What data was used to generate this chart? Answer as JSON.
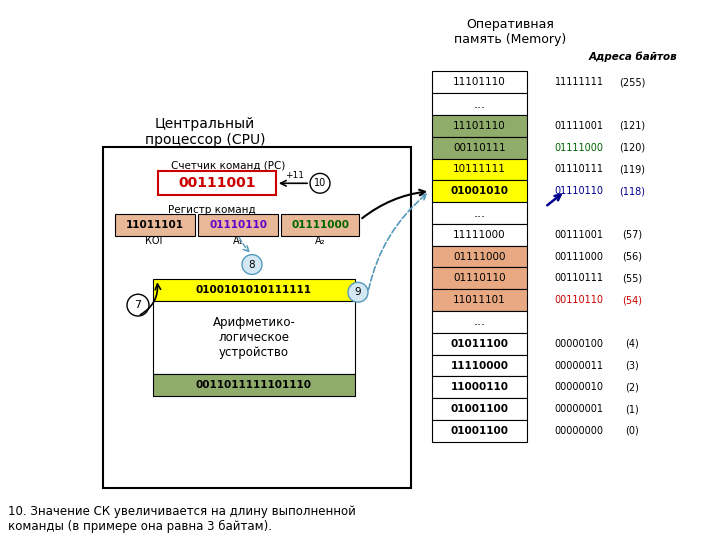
{
  "title_memory": "Оперативная\nпамять (Memory)",
  "title_cpu": "Центральный\nпроцессор (CPU)",
  "addr_label": "Адреса байтов",
  "caption": "10. Значение СК увеличивается на длину выполненной\nкоманды (в примере она равна 3 байтам).",
  "memory_rows": [
    {
      "data": "11101110",
      "addr": "11111111",
      "num": "(255)",
      "bg": "#ffffff",
      "addr_color": "#000000",
      "num_color": "#000000",
      "data_bold": false
    },
    {
      "data": "...",
      "addr": "",
      "num": "",
      "bg": "#ffffff",
      "addr_color": "#000000",
      "num_color": "#000000",
      "data_bold": false
    },
    {
      "data": "11101110",
      "addr": "01111001",
      "num": "(121)",
      "bg": "#8fac6a",
      "addr_color": "#000000",
      "num_color": "#000000",
      "data_bold": false
    },
    {
      "data": "00110111",
      "addr": "01111000",
      "num": "(120)",
      "bg": "#8fac6a",
      "addr_color": "#006600",
      "num_color": "#000000",
      "data_bold": false
    },
    {
      "data": "10111111",
      "addr": "01110111",
      "num": "(119)",
      "bg": "#ffff00",
      "addr_color": "#000000",
      "num_color": "#000000",
      "data_bold": false
    },
    {
      "data": "01001010",
      "addr": "01110110",
      "num": "(118)",
      "bg": "#ffff00",
      "addr_color": "#00008b",
      "num_color": "#00008b",
      "data_bold": true
    },
    {
      "data": "...",
      "addr": "",
      "num": "",
      "bg": "#ffffff",
      "addr_color": "#000000",
      "num_color": "#000000",
      "data_bold": false
    },
    {
      "data": "11111000",
      "addr": "00111001",
      "num": "(57)",
      "bg": "#ffffff",
      "addr_color": "#000000",
      "num_color": "#000000",
      "data_bold": false
    },
    {
      "data": "01111000",
      "addr": "00111000",
      "num": "(56)",
      "bg": "#e8a882",
      "addr_color": "#000000",
      "num_color": "#000000",
      "data_bold": false
    },
    {
      "data": "01110110",
      "addr": "00110111",
      "num": "(55)",
      "bg": "#e8a882",
      "addr_color": "#000000",
      "num_color": "#000000",
      "data_bold": false
    },
    {
      "data": "11011101",
      "addr": "00110110",
      "num": "(54)",
      "bg": "#e8a882",
      "addr_color": "#cc0000",
      "num_color": "#cc0000",
      "data_bold": false
    },
    {
      "data": "...",
      "addr": "",
      "num": "",
      "bg": "#ffffff",
      "addr_color": "#000000",
      "num_color": "#000000",
      "data_bold": false
    },
    {
      "data": "01011100",
      "addr": "00000100",
      "num": "(4)",
      "bg": "#ffffff",
      "addr_color": "#000000",
      "num_color": "#000000",
      "data_bold": true
    },
    {
      "data": "11110000",
      "addr": "00000011",
      "num": "(3)",
      "bg": "#ffffff",
      "addr_color": "#000000",
      "num_color": "#000000",
      "data_bold": true
    },
    {
      "data": "11000110",
      "addr": "00000010",
      "num": "(2)",
      "bg": "#ffffff",
      "addr_color": "#000000",
      "num_color": "#000000",
      "data_bold": true
    },
    {
      "data": "01001100",
      "addr": "00000001",
      "num": "(1)",
      "bg": "#ffffff",
      "addr_color": "#000000",
      "num_color": "#000000",
      "data_bold": true
    },
    {
      "data": "01001100",
      "addr": "00000000",
      "num": "(0)",
      "bg": "#ffffff",
      "addr_color": "#000000",
      "num_color": "#000000",
      "data_bold": true
    }
  ],
  "pc_label": "Счетчик команд (РС)",
  "pc_value": "00111001",
  "pc_color": "#cc0000",
  "reg_label": "Регистр команд",
  "reg_kog": "11011101",
  "reg_a1": "01110110",
  "reg_a2": "01111000",
  "reg_kog_text_color": "#000000",
  "reg_a1_text_color": "#6600cc",
  "reg_a2_text_color": "#006600",
  "alu_top_value": "0100101010111111",
  "alu_bottom_value": "0011011111101110",
  "alu_top_bg": "#ffff00",
  "alu_bottom_bg": "#8fac6a",
  "alu_text": "Арифметико-\nлогическое\nустройство"
}
